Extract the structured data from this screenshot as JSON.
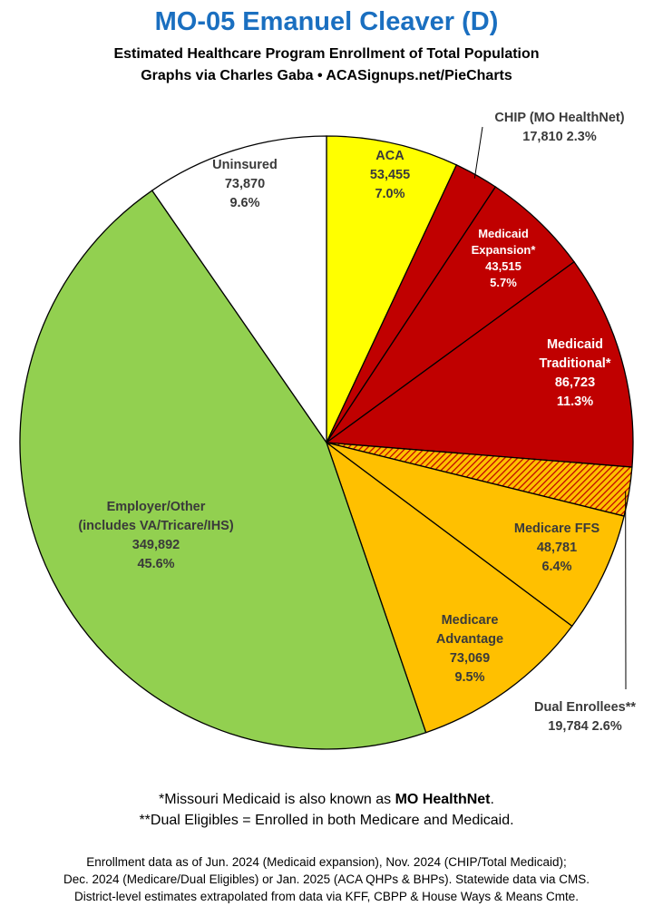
{
  "title": "MO-05 Emanuel Cleaver (D)",
  "subtitle_line1": "Estimated Healthcare Program Enrollment of Total Population",
  "subtitle_line2": "Graphs via Charles Gaba  •  ACASignups.net/PieCharts",
  "chart_data": {
    "type": "pie",
    "start_angle_deg": 0,
    "direction": "clockwise",
    "slices": [
      {
        "label": "ACA",
        "value": 53455,
        "percent": "7.0%",
        "color": "#ffff00",
        "text_color": "#3a3a3a"
      },
      {
        "label": "CHIP (MO HealthNet)",
        "value": 17810,
        "percent": "2.3%",
        "color": "#c00000",
        "text_color": "#3a3a3a"
      },
      {
        "label": "Medicaid Expansion*",
        "value": 43515,
        "percent": "5.7%",
        "color": "#c00000",
        "text_color": "#ffffff"
      },
      {
        "label": "Medicaid Traditional*",
        "value": 86723,
        "percent": "11.3%",
        "color": "#c00000",
        "text_color": "#ffffff"
      },
      {
        "label": "Dual Enrollees**",
        "value": 19784,
        "percent": "2.6%",
        "color": "#ffc000",
        "pattern": "hatch",
        "text_color": "#3a3a3a"
      },
      {
        "label": "Medicare FFS",
        "value": 48781,
        "percent": "6.4%",
        "color": "#ffc000",
        "text_color": "#3a3a3a"
      },
      {
        "label": "Medicare Advantage",
        "value": 73069,
        "percent": "9.5%",
        "color": "#ffc000",
        "text_color": "#3a3a3a"
      },
      {
        "label": "Employer/Other (includes VA/Tricare/IHS)",
        "value": 349892,
        "percent": "45.6%",
        "color": "#92d050",
        "text_color": "#3a3a3a"
      },
      {
        "label": "Uninsured",
        "value": 73870,
        "percent": "9.6%",
        "color": "#ffffff",
        "text_color": "#3a3a3a"
      }
    ],
    "labels": [
      {
        "lines": [
          "ACA",
          "53,455",
          "7.0%"
        ]
      },
      {
        "lines": [
          "CHIP (MO HealthNet)",
          "17,810 2.3%"
        ]
      },
      {
        "lines": [
          "Medicaid",
          "Expansion*",
          "43,515",
          "5.7%"
        ]
      },
      {
        "lines": [
          "Medicaid",
          "Traditional*",
          "86,723",
          "11.3%"
        ]
      },
      {
        "lines": [
          "Dual Enrollees**",
          "19,784 2.6%"
        ]
      },
      {
        "lines": [
          "Medicare FFS",
          "48,781",
          "6.4%"
        ]
      },
      {
        "lines": [
          "Medicare",
          "Advantage",
          "73,069",
          "9.5%"
        ]
      },
      {
        "lines": [
          "Employer/Other",
          "(includes VA/Tricare/IHS)",
          "349,892",
          "45.6%"
        ]
      },
      {
        "lines": [
          "Uninsured",
          "73,870",
          "9.6%"
        ]
      }
    ]
  },
  "notes": {
    "line1_prefix": "*Missouri Medicaid is also known as ",
    "line1_bold": "MO HealthNet",
    "line1_suffix": ".",
    "line2": "**Dual Eligibles = Enrolled in both Medicare and Medicaid."
  },
  "footer": {
    "line1": "Enrollment data as of Jun. 2024 (Medicaid expansion), Nov. 2024 (CHIP/Total Medicaid);",
    "line2": "Dec. 2024 (Medicare/Dual Eligibles) or Jan. 2025 (ACA QHPs & BHPs). Statewide data via CMS.",
    "line3": "District-level estimates extrapolated from data via KFF, CBPP & House Ways & Means Cmte."
  }
}
